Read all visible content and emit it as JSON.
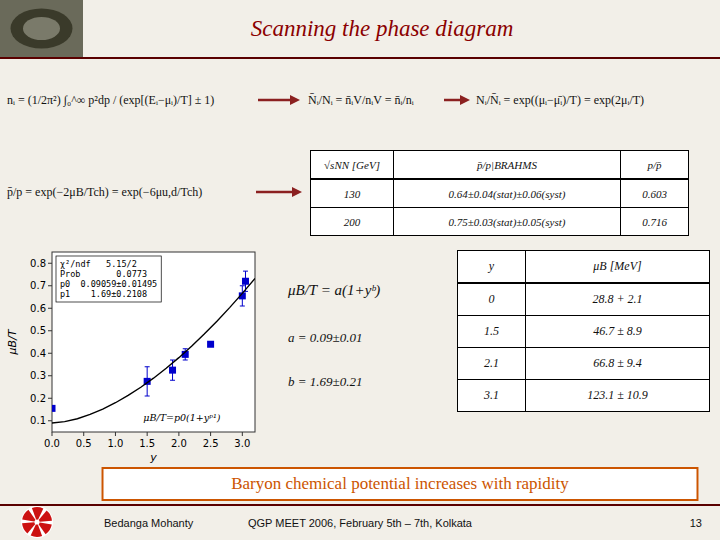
{
  "chart_data": {
    "type": "scatter",
    "title": "Scanning the phase diagram",
    "x_label": "y",
    "y_label": "μB/T",
    "xlim": [
      0,
      3.2
    ],
    "ylim": [
      0.05,
      0.85
    ],
    "xticks": [
      {
        "value": 0,
        "label": "0.0"
      },
      0.5,
      {
        "value": 1,
        "label": "1.0"
      },
      1.5,
      {
        "value": 2,
        "label": "2.0"
      },
      2.5,
      {
        "value": 3,
        "label": "3.0"
      }
    ],
    "yticks": [
      0.1,
      0.2,
      0.3,
      0.4,
      0.5,
      0.6,
      0.7,
      0.8
    ],
    "grid": false,
    "series": [
      {
        "type": "scatter",
        "marker": "square",
        "color": "#0000cc",
        "x": [
          0.0,
          1.5,
          1.9,
          2.1,
          2.5,
          3.0,
          3.05
        ],
        "values": [
          0.155,
          0.275,
          0.325,
          0.395,
          0.44,
          0.655,
          0.72
        ],
        "errors": [
          0.0,
          0.065,
          0.045,
          0.025,
          0.0,
          0.045,
          0.045
        ]
      },
      {
        "type": "line",
        "line_style": "solid",
        "color": "#000000",
        "x": [
          0,
          0.2,
          0.4,
          0.6,
          0.8,
          1.0,
          1.2,
          1.4,
          1.6,
          1.8,
          2.0,
          2.2,
          2.4,
          2.6,
          2.8,
          3.0,
          3.2
        ],
        "values": [
          0.09,
          0.0959,
          0.1091,
          0.128,
          0.1517,
          0.18,
          0.2125,
          0.2489,
          0.2892,
          0.333,
          0.3804,
          0.4311,
          0.4852,
          0.5424,
          0.6028,
          0.6662,
          0.7326
        ]
      }
    ],
    "equations": [
      "nᵢ = (1/2π²) ∫₀^∞ p²dp / (exp[(Eᵢ−μᵢ)/T] ± 1)",
      "N̄ᵢ/Nᵢ = n̄ᵢV/nᵢV = n̄ᵢ/nᵢ",
      "Nᵢ/N̄ᵢ = exp((μᵢ−μ̄ᵢ)/T) = exp(2μᵢ/T)",
      "p̄/p = exp(−2μB/Tch) = exp(−6μu,d/Tch)"
    ],
    "stat_box": [
      "χ²/ndf   5.15/2",
      "Prob       0.0773",
      "p0  0.09059±0.01495",
      "p1    1.69±0.2108"
    ],
    "fit_label": "μB/T=p0(1+yᵖ¹)",
    "fit_equation": "μB/T = a(1+yᵇ)",
    "fit_params": [
      "a = 0.09±0.01",
      "b = 1.69±0.21"
    ],
    "tables": [
      {
        "columns": [
          "√sNN [GeV]",
          "p̄/p|BRAHMS",
          "p/p̄"
        ],
        "rows": [
          [
            "130",
            "0.64±0.04(stat)±0.06(syst)",
            "0.603"
          ],
          [
            "200",
            "0.75±0.03(stat)±0.05(syst)",
            "0.716"
          ]
        ]
      },
      {
        "columns": [
          "y",
          "μB [MeV]"
        ],
        "rows": [
          [
            "0",
            "28.8 + 2.1"
          ],
          [
            "1.5",
            "46.7 ± 8.9"
          ],
          [
            "2.1",
            "66.8 ± 9.4"
          ],
          [
            "3.1",
            "123.1 ± 10.9"
          ]
        ]
      }
    ],
    "banner": "Baryon chemical potential increases with rapidity",
    "footer": [
      "Bedanga Mohanty",
      "QGP MEET 2006, February 5th – 7th, Kolkata",
      "13"
    ]
  }
}
